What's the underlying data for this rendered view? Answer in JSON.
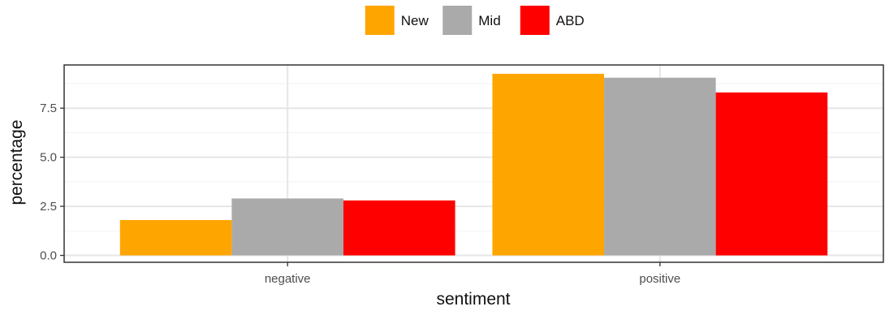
{
  "chart_data": {
    "type": "bar",
    "categories": [
      "negative",
      "positive"
    ],
    "series": [
      {
        "name": "New",
        "color": "#FFA500",
        "values": [
          1.8,
          9.25
        ]
      },
      {
        "name": "Mid",
        "color": "#AAAAAA",
        "values": [
          2.9,
          9.05
        ]
      },
      {
        "name": "ABD",
        "color": "#FF0000",
        "values": [
          2.8,
          8.3
        ]
      }
    ],
    "xlabel": "sentiment",
    "ylabel": "percentage",
    "ylim": [
      -0.35,
      9.7
    ],
    "yticks": [
      0.0,
      2.5,
      5.0,
      7.5
    ],
    "ytick_labels": [
      "0.0",
      "2.5",
      "5.0",
      "7.5"
    ],
    "grid": true,
    "legend_position": "top"
  }
}
